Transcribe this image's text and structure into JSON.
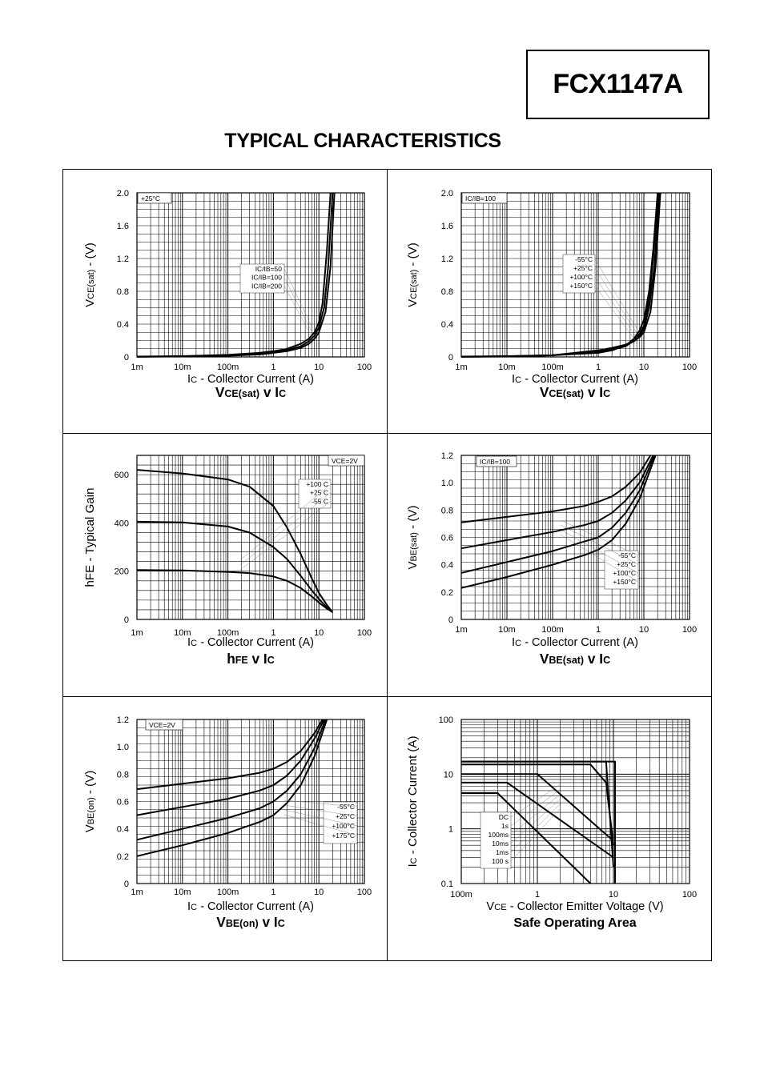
{
  "part_number": "FCX1147A",
  "page_title": "TYPICAL CHARACTERISTICS",
  "chart_data": [
    {
      "id": "vcesat-ratio",
      "type": "line",
      "title": "VCE(sat) v IC",
      "title_parts": [
        [
          "V",
          "l"
        ],
        [
          "CE(sat)",
          "s"
        ],
        [
          " v I",
          "l"
        ],
        [
          "C",
          "s"
        ]
      ],
      "xlabel_parts": [
        [
          "I",
          "n"
        ],
        [
          "C",
          "s"
        ],
        [
          " - Collector Current (A)",
          "n"
        ]
      ],
      "ylabel_parts": [
        [
          "V",
          "l"
        ],
        [
          "CE(sat)",
          "s"
        ],
        [
          " - (V)",
          "l"
        ]
      ],
      "x_scale": "log",
      "xlim": [
        0.001,
        100
      ],
      "xticks": [
        0.001,
        0.01,
        0.1,
        1,
        10,
        100
      ],
      "xtick_labels": [
        "1m",
        "10m",
        "100m",
        "1",
        "10",
        "100"
      ],
      "y_scale": "linear",
      "ylim": [
        0,
        2.0
      ],
      "yticks": [
        0,
        0.4,
        0.8,
        1.2,
        1.6,
        2.0
      ],
      "ytick_labels": [
        "0",
        "0.4",
        "0.8",
        "1.2",
        "1.6",
        "2.0"
      ],
      "grid": true,
      "corner_note": "+25°C",
      "legend": [
        "IC/IB=50",
        "IC/IB=100",
        "IC/IB=200"
      ],
      "series": [
        {
          "x": [
            0.001,
            0.01,
            0.1,
            0.5,
            1,
            2,
            4,
            6,
            8,
            10,
            12,
            15,
            18
          ],
          "y": [
            0.005,
            0.01,
            0.025,
            0.05,
            0.07,
            0.1,
            0.16,
            0.22,
            0.3,
            0.42,
            0.65,
            1.3,
            2.0
          ]
        },
        {
          "x": [
            0.001,
            0.01,
            0.1,
            0.5,
            1,
            2,
            4,
            6,
            8,
            10,
            13,
            16,
            20
          ],
          "y": [
            0.003,
            0.008,
            0.02,
            0.04,
            0.06,
            0.085,
            0.13,
            0.19,
            0.26,
            0.36,
            0.6,
            1.1,
            2.0
          ]
        },
        {
          "x": [
            0.001,
            0.01,
            0.1,
            0.5,
            1,
            2,
            4,
            6,
            8,
            10,
            14,
            18,
            22
          ],
          "y": [
            0.002,
            0.006,
            0.015,
            0.03,
            0.05,
            0.07,
            0.11,
            0.16,
            0.22,
            0.3,
            0.55,
            1.1,
            2.0
          ]
        }
      ]
    },
    {
      "id": "vcesat-temp",
      "type": "line",
      "title": "VCE(sat) v IC",
      "title_parts": [
        [
          "V",
          "l"
        ],
        [
          "CE(sat)",
          "s"
        ],
        [
          " v I",
          "l"
        ],
        [
          "C",
          "s"
        ]
      ],
      "xlabel_parts": [
        [
          "I",
          "n"
        ],
        [
          "C",
          "s"
        ],
        [
          " - Collector Current (A)",
          "n"
        ]
      ],
      "ylabel_parts": [
        [
          "V",
          "l"
        ],
        [
          "CE(sat)",
          "s"
        ],
        [
          " - (V)",
          "l"
        ]
      ],
      "x_scale": "log",
      "xlim": [
        0.001,
        100
      ],
      "xticks": [
        0.001,
        0.01,
        0.1,
        1,
        10,
        100
      ],
      "xtick_labels": [
        "1m",
        "10m",
        "100m",
        "1",
        "10",
        "100"
      ],
      "y_scale": "linear",
      "ylim": [
        0,
        2.0
      ],
      "yticks": [
        0,
        0.4,
        0.8,
        1.2,
        1.6,
        2.0
      ],
      "ytick_labels": [
        "0",
        "0.4",
        "0.8",
        "1.2",
        "1.6",
        "2.0"
      ],
      "grid": true,
      "corner_note": "IC/IB=100",
      "legend": [
        "-55°C",
        "+25°C",
        "+100°C",
        "+150°C"
      ],
      "series": [
        {
          "x": [
            0.001,
            0.01,
            0.1,
            1,
            2,
            4,
            6,
            8,
            10,
            13,
            16,
            20
          ],
          "y": [
            0.005,
            0.01,
            0.02,
            0.05,
            0.08,
            0.14,
            0.22,
            0.32,
            0.45,
            0.8,
            1.3,
            2.0
          ]
        },
        {
          "x": [
            0.001,
            0.01,
            0.1,
            1,
            2,
            4,
            6,
            8,
            10,
            13,
            16,
            21
          ],
          "y": [
            0.003,
            0.008,
            0.02,
            0.06,
            0.09,
            0.13,
            0.2,
            0.28,
            0.38,
            0.7,
            1.2,
            2.0
          ]
        },
        {
          "x": [
            0.001,
            0.01,
            0.1,
            1,
            2,
            4,
            6,
            8,
            10,
            13,
            17,
            22
          ],
          "y": [
            0.002,
            0.006,
            0.02,
            0.07,
            0.1,
            0.14,
            0.19,
            0.26,
            0.34,
            0.6,
            1.1,
            2.0
          ]
        },
        {
          "x": [
            0.001,
            0.01,
            0.1,
            1,
            2,
            4,
            6,
            8,
            10,
            14,
            18,
            23
          ],
          "y": [
            0.002,
            0.005,
            0.02,
            0.08,
            0.11,
            0.15,
            0.19,
            0.24,
            0.3,
            0.55,
            1.1,
            2.0
          ]
        }
      ]
    },
    {
      "id": "hfe",
      "type": "line",
      "title": "hFE v IC",
      "title_parts": [
        [
          "h",
          "l"
        ],
        [
          "FE",
          "s"
        ],
        [
          " v I",
          "l"
        ],
        [
          "C",
          "s"
        ]
      ],
      "xlabel_parts": [
        [
          "I",
          "n"
        ],
        [
          "C",
          "s"
        ],
        [
          " - Collector Current (A)",
          "n"
        ]
      ],
      "ylabel_parts": [
        [
          "hFE - Typical Gain",
          "l"
        ]
      ],
      "x_scale": "log",
      "xlim": [
        0.001,
        100
      ],
      "xticks": [
        0.001,
        0.01,
        0.1,
        1,
        10,
        100
      ],
      "xtick_labels": [
        "1m",
        "10m",
        "100m",
        "1",
        "10",
        "100"
      ],
      "y_scale": "linear",
      "ylim": [
        0,
        680
      ],
      "yticks": [
        0,
        200,
        400,
        600
      ],
      "ytick_labels": [
        "0",
        "200",
        "400",
        "600"
      ],
      "grid": true,
      "corner_note": "VCE=2V",
      "legend": [
        "+100 C",
        "+25 C",
        "-55 C"
      ],
      "series": [
        {
          "x": [
            0.001,
            0.01,
            0.1,
            0.3,
            1,
            2,
            4,
            7,
            10,
            15,
            20
          ],
          "y": [
            620,
            605,
            580,
            550,
            470,
            380,
            270,
            170,
            110,
            60,
            30
          ]
        },
        {
          "x": [
            0.001,
            0.01,
            0.1,
            0.3,
            1,
            2,
            4,
            7,
            10,
            15,
            20
          ],
          "y": [
            405,
            402,
            385,
            360,
            300,
            250,
            180,
            120,
            85,
            50,
            30
          ]
        },
        {
          "x": [
            0.001,
            0.01,
            0.1,
            0.3,
            1,
            2,
            4,
            7,
            10,
            15,
            20
          ],
          "y": [
            205,
            203,
            197,
            192,
            178,
            160,
            130,
            95,
            70,
            45,
            30
          ]
        }
      ]
    },
    {
      "id": "vbesat",
      "type": "line",
      "title": "VBE(sat) v IC",
      "title_parts": [
        [
          "V",
          "l"
        ],
        [
          "BE(sat)",
          "s"
        ],
        [
          " v I",
          "l"
        ],
        [
          "C",
          "s"
        ]
      ],
      "xlabel_parts": [
        [
          "I",
          "n"
        ],
        [
          "C",
          "s"
        ],
        [
          " - Collector Current (A)",
          "n"
        ]
      ],
      "ylabel_parts": [
        [
          "V",
          "l"
        ],
        [
          "BE(sat)",
          "s"
        ],
        [
          " - (V)",
          "l"
        ]
      ],
      "x_scale": "log",
      "xlim": [
        0.001,
        100
      ],
      "xticks": [
        0.001,
        0.01,
        0.1,
        1,
        10,
        100
      ],
      "xtick_labels": [
        "1m",
        "10m",
        "100m",
        "1",
        "10",
        "100"
      ],
      "y_scale": "linear",
      "ylim": [
        0,
        1.2
      ],
      "yticks": [
        0,
        0.2,
        0.4,
        0.6,
        0.8,
        1.0,
        1.2
      ],
      "ytick_labels": [
        "0",
        "0.2",
        "0.4",
        "0.6",
        "0.8",
        "1.0",
        "1.2"
      ],
      "grid": true,
      "corner_note": "IC/IB=100",
      "legend": [
        "-55°C",
        "+25°C",
        "+100°C",
        "+150°C"
      ],
      "series": [
        {
          "x": [
            0.001,
            0.01,
            0.1,
            0.5,
            1,
            2,
            4,
            8,
            14
          ],
          "y": [
            0.71,
            0.75,
            0.79,
            0.83,
            0.86,
            0.9,
            0.97,
            1.07,
            1.2
          ]
        },
        {
          "x": [
            0.001,
            0.01,
            0.1,
            0.5,
            1,
            2,
            4,
            8,
            16
          ],
          "y": [
            0.52,
            0.58,
            0.64,
            0.69,
            0.72,
            0.78,
            0.87,
            1.0,
            1.2
          ]
        },
        {
          "x": [
            0.001,
            0.01,
            0.1,
            0.5,
            1,
            2,
            4,
            8,
            17
          ],
          "y": [
            0.34,
            0.42,
            0.5,
            0.57,
            0.6,
            0.67,
            0.78,
            0.94,
            1.2
          ]
        },
        {
          "x": [
            0.001,
            0.01,
            0.1,
            0.5,
            1,
            2,
            4,
            8,
            18
          ],
          "y": [
            0.23,
            0.31,
            0.4,
            0.47,
            0.51,
            0.58,
            0.7,
            0.88,
            1.2
          ]
        }
      ]
    },
    {
      "id": "vbeon",
      "type": "line",
      "title": "VBE(on) v IC",
      "title_parts": [
        [
          "V",
          "l"
        ],
        [
          "BE(on)",
          "s"
        ],
        [
          " v I",
          "l"
        ],
        [
          "C",
          "s"
        ]
      ],
      "xlabel_parts": [
        [
          "I",
          "n"
        ],
        [
          "C",
          "s"
        ],
        [
          " - Collector Current (A)",
          "n"
        ]
      ],
      "ylabel_parts": [
        [
          "V",
          "l"
        ],
        [
          "BE(on)",
          "s"
        ],
        [
          " - (V)",
          "l"
        ]
      ],
      "x_scale": "log",
      "xlim": [
        0.001,
        100
      ],
      "xticks": [
        0.001,
        0.01,
        0.1,
        1,
        10,
        100
      ],
      "xtick_labels": [
        "1m",
        "10m",
        "100m",
        "1",
        "10",
        "100"
      ],
      "y_scale": "linear",
      "ylim": [
        0,
        1.2
      ],
      "yticks": [
        0,
        0.2,
        0.4,
        0.6,
        0.8,
        1.0,
        1.2
      ],
      "ytick_labels": [
        "0",
        "0.2",
        "0.4",
        "0.6",
        "0.8",
        "1.0",
        "1.2"
      ],
      "grid": true,
      "corner_note": "VCE=2V",
      "legend": [
        "-55°C",
        "+25°C",
        "+100°C",
        "+175°C"
      ],
      "series": [
        {
          "x": [
            0.001,
            0.01,
            0.1,
            0.5,
            1,
            2,
            4,
            8,
            12
          ],
          "y": [
            0.69,
            0.73,
            0.77,
            0.81,
            0.84,
            0.89,
            0.97,
            1.1,
            1.2
          ]
        },
        {
          "x": [
            0.001,
            0.01,
            0.1,
            0.5,
            1,
            2,
            4,
            8,
            13
          ],
          "y": [
            0.5,
            0.56,
            0.62,
            0.68,
            0.72,
            0.79,
            0.9,
            1.06,
            1.2
          ]
        },
        {
          "x": [
            0.001,
            0.01,
            0.1,
            0.5,
            1,
            2,
            4,
            8,
            14
          ],
          "y": [
            0.32,
            0.4,
            0.48,
            0.55,
            0.6,
            0.68,
            0.8,
            0.99,
            1.2
          ]
        },
        {
          "x": [
            0.001,
            0.01,
            0.1,
            0.5,
            1,
            2,
            4,
            8,
            15
          ],
          "y": [
            0.2,
            0.28,
            0.37,
            0.45,
            0.5,
            0.59,
            0.72,
            0.93,
            1.2
          ]
        }
      ]
    },
    {
      "id": "soa",
      "type": "line",
      "title": "Safe Operating Area",
      "title_parts": [
        [
          "Safe Operating Area",
          "n"
        ]
      ],
      "xlabel_parts": [
        [
          "V",
          "n"
        ],
        [
          "CE",
          "s"
        ],
        [
          " - Collector Emitter Voltage (V)",
          "n"
        ]
      ],
      "ylabel_parts": [
        [
          "I",
          "l"
        ],
        [
          "C",
          "s"
        ],
        [
          " - Collector Current (A)",
          "l"
        ]
      ],
      "x_scale": "log",
      "xlim": [
        0.1,
        100
      ],
      "xticks": [
        0.1,
        1,
        10,
        100
      ],
      "xtick_labels": [
        "100m",
        "1",
        "10",
        "100"
      ],
      "y_scale": "log",
      "ylim": [
        0.1,
        100
      ],
      "yticks": [
        0.1,
        1,
        10,
        100
      ],
      "ytick_labels": [
        "0.1",
        "1",
        "10",
        "100"
      ],
      "grid": true,
      "legend": [
        "DC",
        "1s",
        "100ms",
        "10ms",
        "1ms",
        "100  s"
      ],
      "series": [
        {
          "x": [
            0.1,
            0.3,
            5
          ],
          "y": [
            4.5,
            4.5,
            0.1
          ]
        },
        {
          "x": [
            0.1,
            0.4,
            10
          ],
          "y": [
            7,
            7,
            0.3
          ]
        },
        {
          "x": [
            0.1,
            1,
            10
          ],
          "y": [
            10,
            10,
            0.6
          ]
        },
        {
          "x": [
            0.1,
            5,
            8,
            10
          ],
          "y": [
            15,
            15,
            7,
            0.5
          ]
        },
        {
          "x": [
            0.1,
            8,
            10
          ],
          "y": [
            17,
            17,
            0.2
          ]
        },
        {
          "x": [
            0.1,
            10.5,
            10.5
          ],
          "y": [
            17,
            17,
            0.1
          ]
        }
      ]
    }
  ]
}
